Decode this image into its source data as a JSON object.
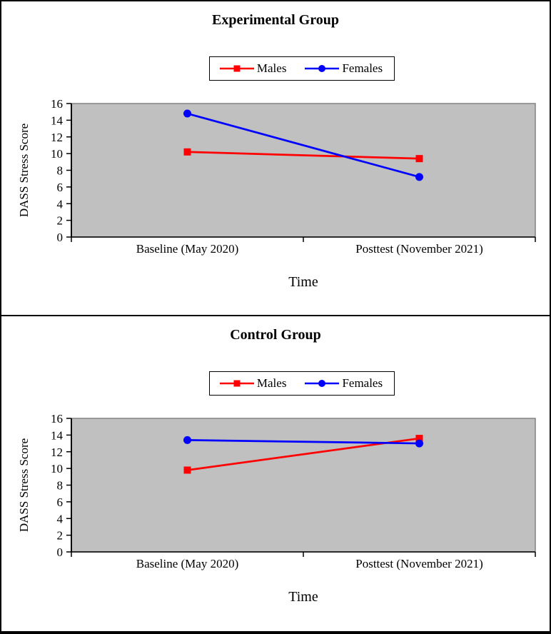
{
  "styles": {
    "males_color": "#ff0000",
    "females_color": "#0000ff",
    "plot_background": "#c0c0c0",
    "plot_border": "#848284",
    "axis_color": "#000000",
    "panel_border": "#000000",
    "page_background": "#ffffff"
  },
  "chart_data": [
    {
      "type": "line",
      "title": "Experimental Group",
      "xlabel": "Time",
      "ylabel": "DASS Stress Score",
      "categories": [
        "Baseline (May 2020)",
        "Posttest (November 2021)"
      ],
      "series": [
        {
          "name": "Males",
          "color": "#ff0000",
          "marker": "square",
          "values": [
            10.2,
            9.4
          ]
        },
        {
          "name": "Females",
          "color": "#0000ff",
          "marker": "circle",
          "values": [
            14.8,
            7.2
          ]
        }
      ],
      "ylim": [
        0,
        16
      ],
      "y_ticks": [
        0,
        2,
        4,
        6,
        8,
        10,
        12,
        14,
        16
      ],
      "grid": false,
      "legend_position": "top-center",
      "plot_background": "#c0c0c0"
    },
    {
      "type": "line",
      "title": "Control Group",
      "xlabel": "Time",
      "ylabel": "DASS Stress Score",
      "categories": [
        "Baseline (May 2020)",
        "Posttest (November 2021)"
      ],
      "series": [
        {
          "name": "Males",
          "color": "#ff0000",
          "marker": "square",
          "values": [
            9.8,
            13.6
          ]
        },
        {
          "name": "Females",
          "color": "#0000ff",
          "marker": "circle",
          "values": [
            13.4,
            13.0
          ]
        }
      ],
      "ylim": [
        0,
        16
      ],
      "y_ticks": [
        0,
        2,
        4,
        6,
        8,
        10,
        12,
        14,
        16
      ],
      "grid": false,
      "legend_position": "top-center",
      "plot_background": "#c0c0c0"
    }
  ]
}
